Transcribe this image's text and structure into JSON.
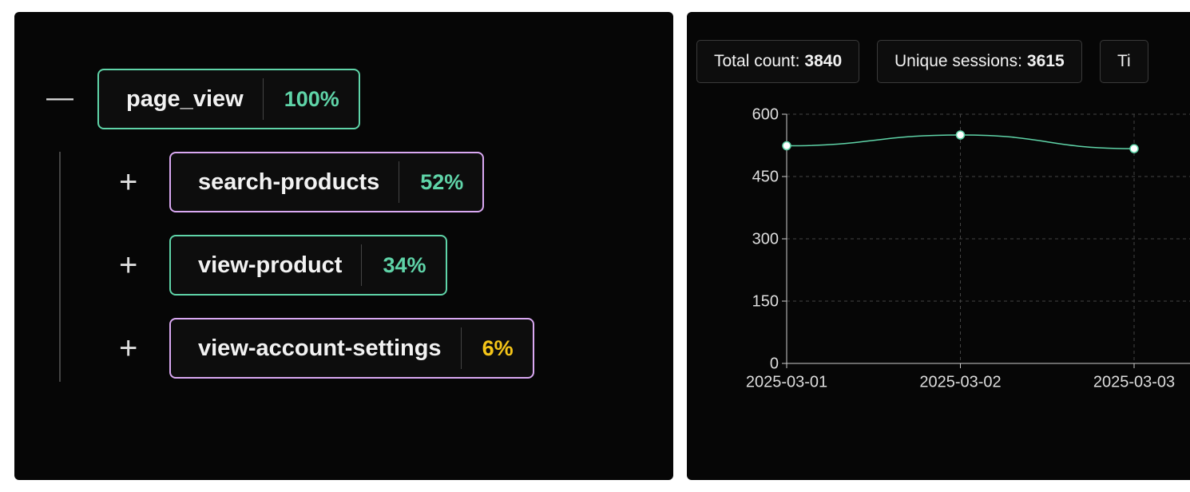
{
  "tree": {
    "root": {
      "label": "page_view",
      "percent": "100%",
      "border": "#5fd4a8",
      "percent_color": "#5fd4a8"
    },
    "children": [
      {
        "label": "search-products",
        "percent": "52%",
        "border": "#d9a8f2",
        "percent_color": "#5fd4a8"
      },
      {
        "label": "view-product",
        "percent": "34%",
        "border": "#5fd4a8",
        "percent_color": "#5fd4a8"
      },
      {
        "label": "view-account-settings",
        "percent": "6%",
        "border": "#d9a8f2",
        "percent_color": "#f5c518"
      }
    ]
  },
  "stats": [
    {
      "label": "Total count:",
      "value": "3840"
    },
    {
      "label": "Unique sessions:",
      "value": "3615"
    },
    {
      "label": "Ti"
    }
  ],
  "chart_data": {
    "type": "line",
    "x": [
      "2025-03-01",
      "2025-03-02",
      "2025-03-03"
    ],
    "series": [
      {
        "color": "#5fd4a8",
        "values": [
          524,
          550,
          517
        ]
      }
    ],
    "ylim": [
      0,
      600
    ],
    "yticks": [
      0,
      150,
      300,
      450,
      600
    ],
    "grid": true
  }
}
